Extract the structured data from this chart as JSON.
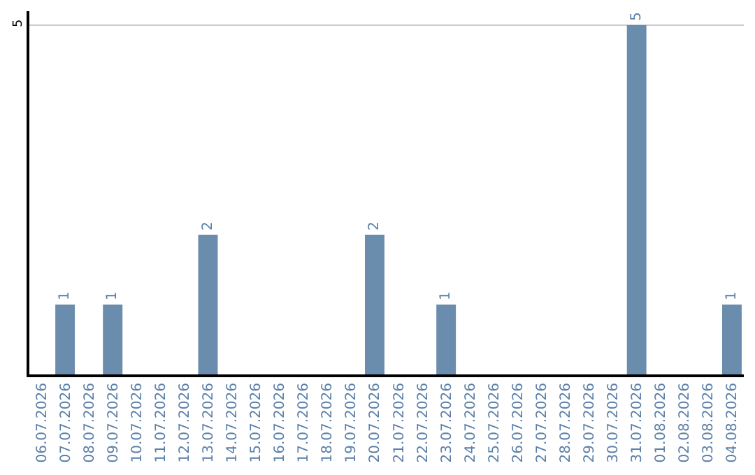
{
  "chart_data": {
    "type": "bar",
    "categories": [
      "06.07.2026",
      "07.07.2026",
      "08.07.2026",
      "09.07.2026",
      "10.07.2026",
      "11.07.2026",
      "12.07.2026",
      "13.07.2026",
      "14.07.2026",
      "15.07.2026",
      "16.07.2026",
      "17.07.2026",
      "18.07.2026",
      "19.07.2026",
      "20.07.2026",
      "21.07.2026",
      "22.07.2026",
      "23.07.2026",
      "24.07.2026",
      "25.07.2026",
      "26.07.2026",
      "27.07.2026",
      "28.07.2026",
      "29.07.2026",
      "30.07.2026",
      "31.07.2026",
      "01.08.2026",
      "02.08.2026",
      "03.08.2026",
      "04.08.2026"
    ],
    "values": [
      0,
      1,
      0,
      1,
      0,
      0,
      0,
      2,
      0,
      0,
      0,
      0,
      0,
      0,
      2,
      0,
      0,
      1,
      0,
      0,
      0,
      0,
      0,
      0,
      0,
      5,
      0,
      0,
      0,
      1
    ],
    "value_labels": [
      null,
      "1",
      null,
      "1",
      null,
      null,
      null,
      "2",
      null,
      null,
      null,
      null,
      null,
      null,
      "2",
      null,
      null,
      "1",
      null,
      null,
      null,
      null,
      null,
      null,
      null,
      "5",
      null,
      null,
      null,
      "1"
    ],
    "color": "#6a8cad",
    "ylim": [
      0,
      5.2
    ],
    "yticks": [
      5
    ],
    "grid": "y"
  }
}
